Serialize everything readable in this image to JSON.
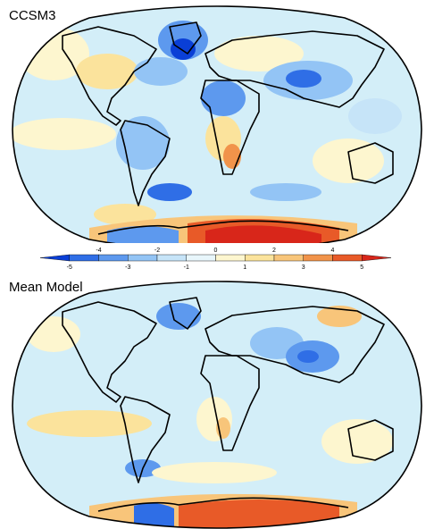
{
  "panels": [
    {
      "title": "CCSM3"
    },
    {
      "title": "Mean Model"
    }
  ],
  "colorbar": {
    "upper_labels": [
      "-4",
      "-2",
      "0",
      "2",
      "4"
    ],
    "lower_labels": [
      "-5",
      "-3",
      "-1",
      "1",
      "3",
      "5"
    ],
    "colors": [
      "#0a3fd6",
      "#2f6ee6",
      "#5d99ee",
      "#93c4f5",
      "#c6e4f8",
      "#e8f6fb",
      "#fdf6cf",
      "#fbe39c",
      "#f8c57a",
      "#f1934a",
      "#e85a28",
      "#d8261a"
    ]
  },
  "colors": {
    "ocean_base": "#d3eef8",
    "land_outline": "#000000"
  }
}
